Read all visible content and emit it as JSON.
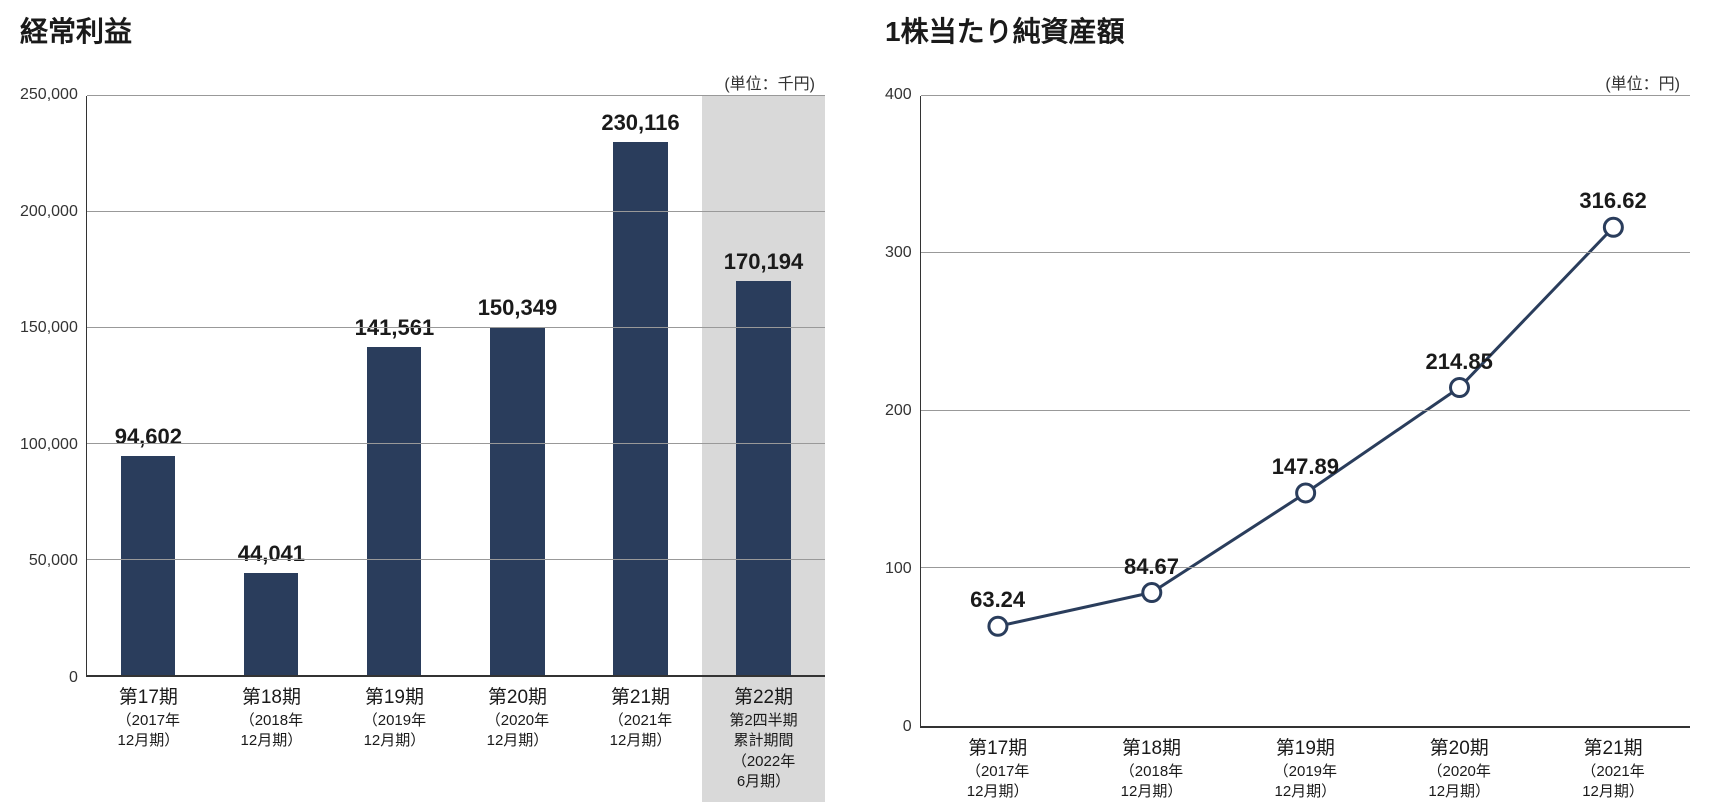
{
  "bar_chart": {
    "title": "経常利益",
    "unit": "(単位：千円)",
    "type": "bar",
    "ylim": [
      0,
      250000
    ],
    "ytick_step": 50000,
    "yticks": [
      "250,000",
      "200,000",
      "150,000",
      "100,000",
      "50,000",
      "0"
    ],
    "bar_color": "#2a3d5c",
    "highlight_bg": "#d9d9d9",
    "grid_color": "#999999",
    "axis_color": "#333333",
    "background_color": "#ffffff",
    "title_fontsize": 28,
    "label_fontsize": 22,
    "tick_fontsize": 16,
    "bar_width_ratio": 0.44,
    "bars": [
      {
        "value": 94602,
        "label": "94,602",
        "period": "第17期",
        "sub1": "（2017年",
        "sub2": "12月期）",
        "highlight": false
      },
      {
        "value": 44041,
        "label": "44,041",
        "period": "第18期",
        "sub1": "（2018年",
        "sub2": "12月期）",
        "highlight": false
      },
      {
        "value": 141561,
        "label": "141,561",
        "period": "第19期",
        "sub1": "（2019年",
        "sub2": "12月期）",
        "highlight": false
      },
      {
        "value": 150349,
        "label": "150,349",
        "period": "第20期",
        "sub1": "（2020年",
        "sub2": "12月期）",
        "highlight": false
      },
      {
        "value": 230116,
        "label": "230,116",
        "period": "第21期",
        "sub1": "（2021年",
        "sub2": "12月期）",
        "highlight": false
      },
      {
        "value": 170194,
        "label": "170,194",
        "period": "第22期",
        "sub1": "第2四半期",
        "sub2": "累計期間",
        "sub3": "（2022年",
        "sub4": "6月期）",
        "highlight": true
      }
    ]
  },
  "line_chart": {
    "title": "1株当たり純資産額",
    "unit": "(単位：円)",
    "type": "line",
    "ylim": [
      0,
      400
    ],
    "ytick_step": 100,
    "yticks": [
      "400",
      "300",
      "200",
      "100",
      "0"
    ],
    "line_color": "#2a3d5c",
    "marker_fill": "#ffffff",
    "marker_stroke": "#2a3d5c",
    "marker_radius": 9,
    "marker_stroke_width": 3,
    "line_width": 3,
    "grid_color": "#999999",
    "axis_color": "#333333",
    "background_color": "#ffffff",
    "title_fontsize": 28,
    "label_fontsize": 22,
    "tick_fontsize": 16,
    "points": [
      {
        "value": 63.24,
        "label": "63.24",
        "period": "第17期",
        "sub1": "（2017年",
        "sub2": "12月期）"
      },
      {
        "value": 84.67,
        "label": "84.67",
        "period": "第18期",
        "sub1": "（2018年",
        "sub2": "12月期）"
      },
      {
        "value": 147.89,
        "label": "147.89",
        "period": "第19期",
        "sub1": "（2019年",
        "sub2": "12月期）"
      },
      {
        "value": 214.85,
        "label": "214.85",
        "period": "第20期",
        "sub1": "（2020年",
        "sub2": "12月期）"
      },
      {
        "value": 316.62,
        "label": "316.62",
        "period": "第21期",
        "sub1": "（2021年",
        "sub2": "12月期）"
      }
    ]
  }
}
